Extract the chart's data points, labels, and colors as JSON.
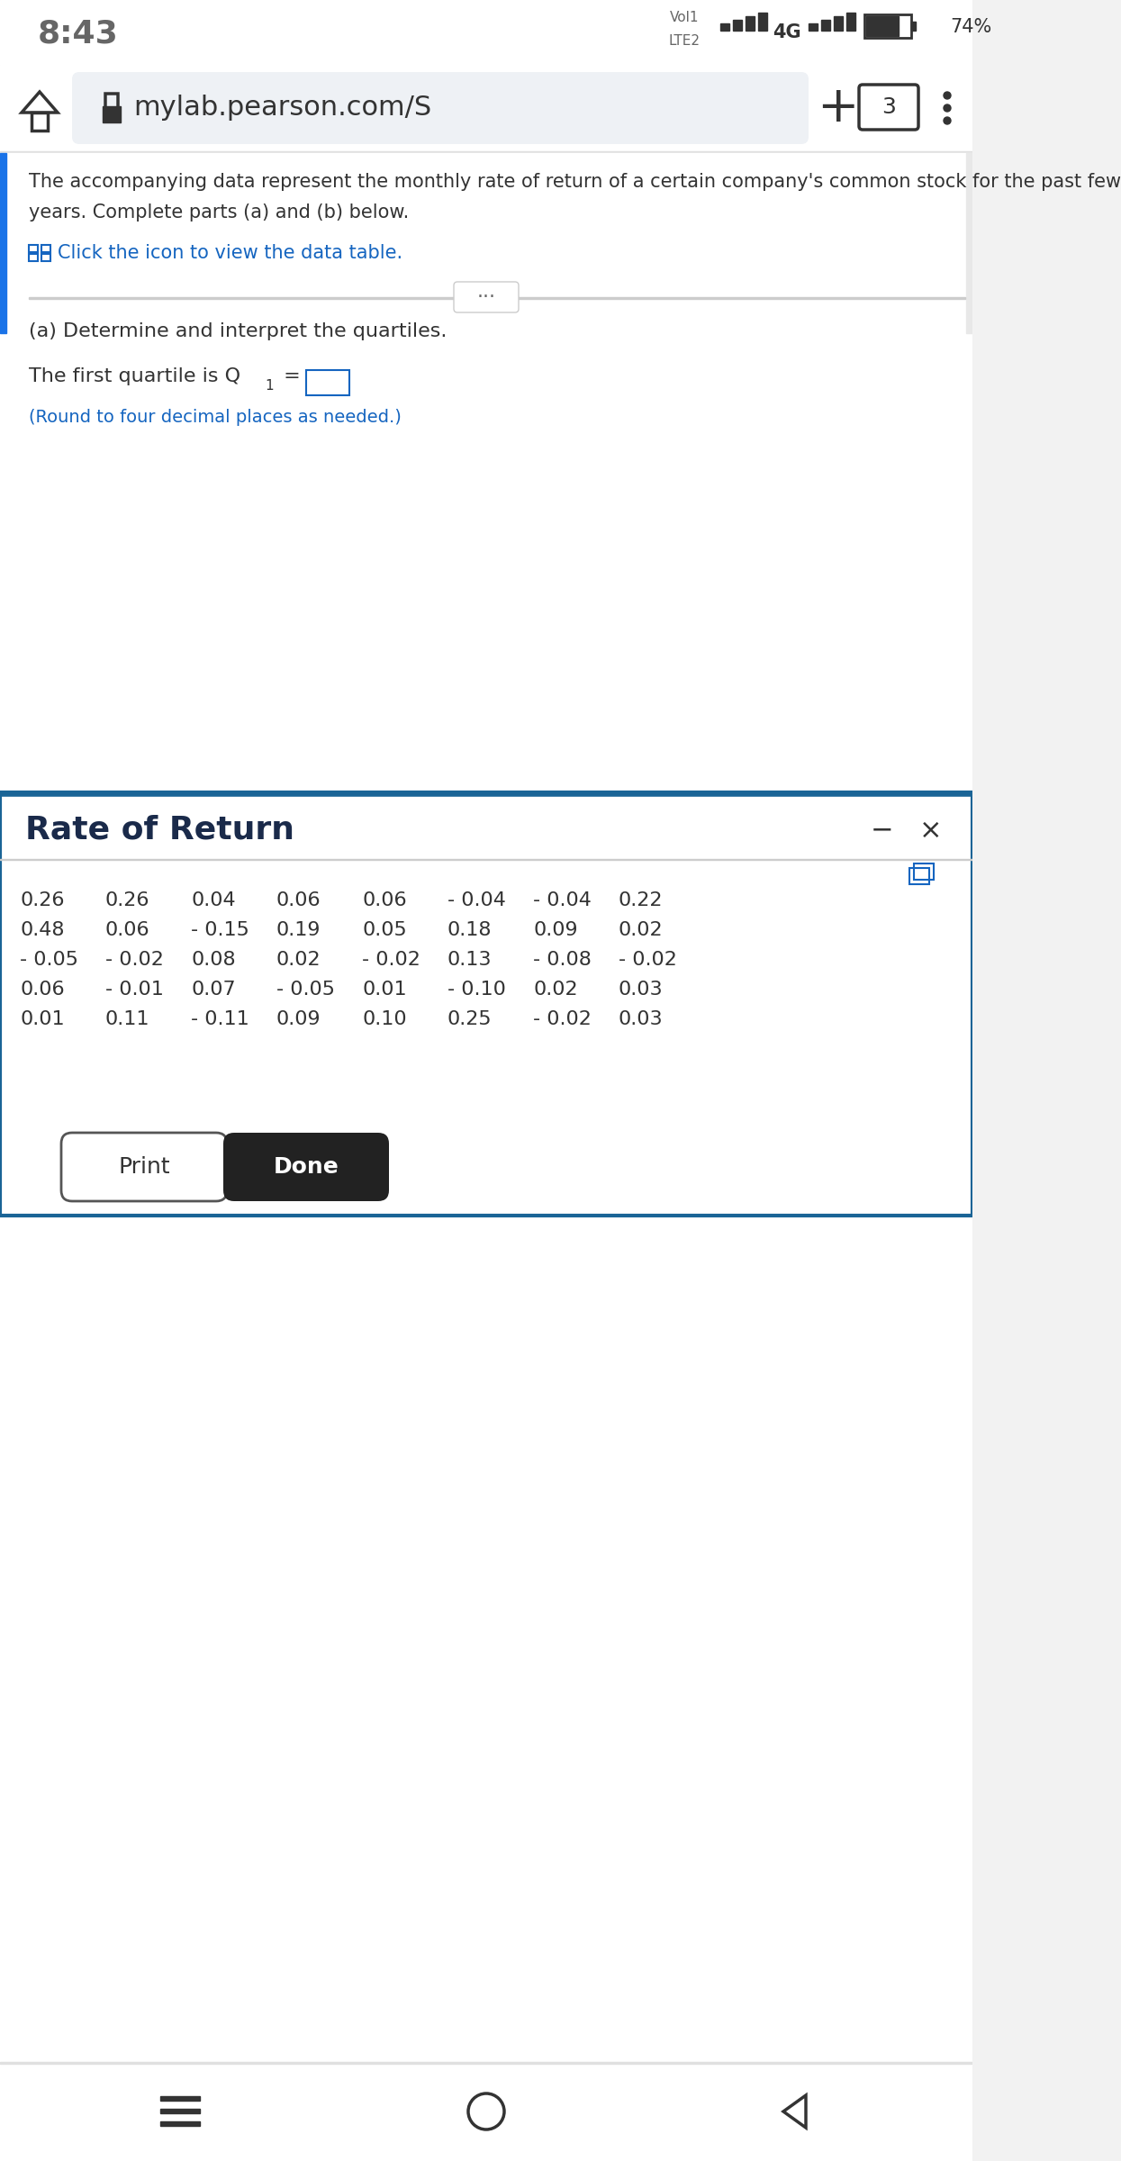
{
  "bg_color": "#f2f2f2",
  "white": "#ffffff",
  "time": "8:43",
  "url": "mylab.pearson.com/S",
  "main_text_line1": "The accompanying data represent the monthly rate of return of a certain company's common stock for the past few",
  "main_text_line2": "years. Complete parts (a) and (b) below.",
  "click_icon_text": "Click the icon to view the data table.",
  "part_a_text": "(a) Determine and interpret the quartiles.",
  "quartile_label": "The first quartile is Q",
  "round_text": "(Round to four decimal places as needed.)",
  "modal_title": "Rate of Return",
  "data_rows": [
    [
      "0.26",
      "0.26",
      "0.04",
      "0.06",
      "0.06",
      "- 0.04",
      "- 0.04",
      "0.22"
    ],
    [
      "0.48",
      "0.06",
      "- 0.15",
      "0.19",
      "0.05",
      "0.18",
      "0.09",
      "0.02"
    ],
    [
      "- 0.05",
      "- 0.02",
      "0.08",
      "0.02",
      "- 0.02",
      "0.13",
      "- 0.08",
      "- 0.02"
    ],
    [
      "0.06",
      "- 0.01",
      "0.07",
      "- 0.05",
      "0.01",
      "- 0.10",
      "0.02",
      "0.03"
    ],
    [
      "0.01",
      "0.11",
      "- 0.11",
      "0.09",
      "0.10",
      "0.25",
      "- 0.02",
      "0.03"
    ]
  ],
  "print_btn": "Print",
  "done_btn": "Done",
  "left_accent_color": "#1a73e8",
  "modal_top_border": "#1a6496",
  "modal_border_color": "#1a6496",
  "yellow_bar_color": "#f5e6b0",
  "dark_text": "#1a1a2e",
  "body_text": "#333333",
  "gray_text": "#666666",
  "blue_link": "#1565c0",
  "teal_link": "#006699",
  "input_border": "#1565c0",
  "status_bar_bg": "#ffffff",
  "nav_bar_bg": "#ffffff",
  "content_bg": "#ffffff",
  "modal_bg": "#ffffff",
  "modal_title_color": "#1a2a4a",
  "separator_color": "#cccccc",
  "url_bar_bg": "#eef1f5",
  "bottom_nav_bg": "#ffffff"
}
